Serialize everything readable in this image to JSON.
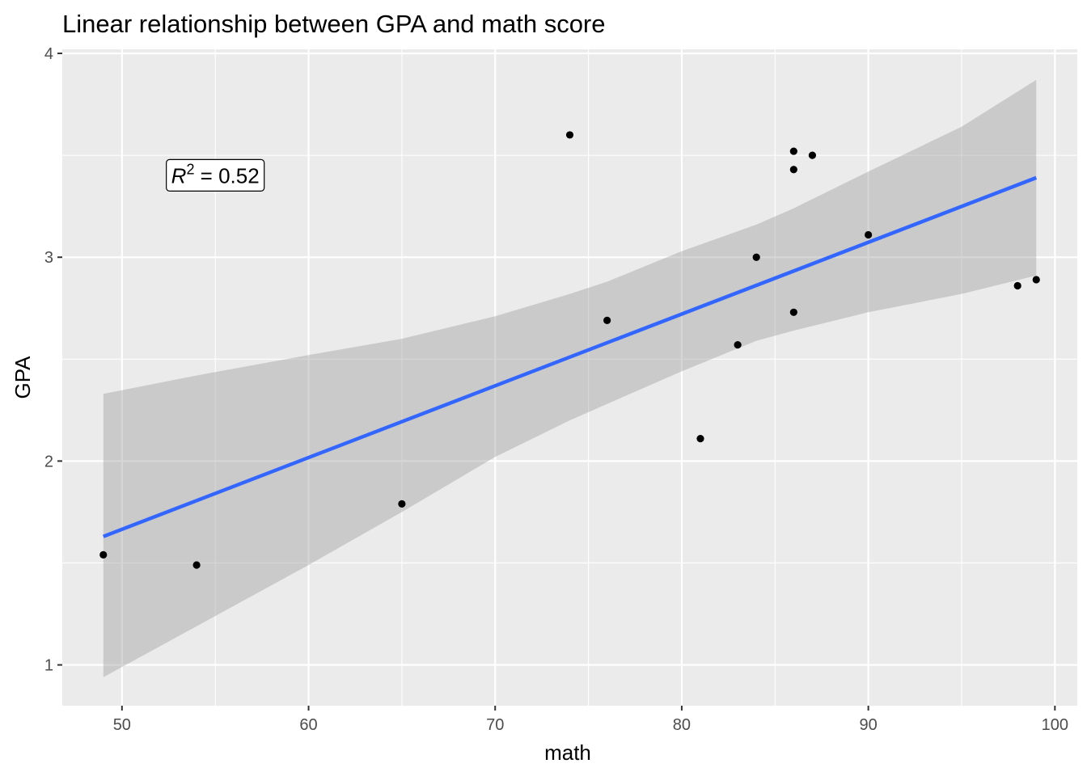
{
  "chart_data": {
    "type": "scatter",
    "title": "Linear relationship between GPA and math score",
    "xlabel": "math",
    "ylabel": "GPA",
    "xlim": [
      46.8,
      101.2
    ],
    "ylim": [
      0.8,
      4.02
    ],
    "x_ticks": [
      50,
      60,
      70,
      80,
      90,
      100
    ],
    "y_ticks": [
      1,
      2,
      3,
      4
    ],
    "x_ticks_minor": [
      55,
      65,
      75,
      85,
      95
    ],
    "y_ticks_minor": [
      1.5,
      2.5,
      3.5
    ],
    "grid": true,
    "background": "#ebebeb",
    "points": [
      {
        "x": 49,
        "y": 1.54
      },
      {
        "x": 54,
        "y": 1.49
      },
      {
        "x": 65,
        "y": 1.79
      },
      {
        "x": 74,
        "y": 3.6
      },
      {
        "x": 76,
        "y": 2.69
      },
      {
        "x": 81,
        "y": 2.11
      },
      {
        "x": 83,
        "y": 2.57
      },
      {
        "x": 84,
        "y": 3.0
      },
      {
        "x": 86,
        "y": 3.52
      },
      {
        "x": 86,
        "y": 3.43
      },
      {
        "x": 86,
        "y": 2.73
      },
      {
        "x": 87,
        "y": 3.5
      },
      {
        "x": 90,
        "y": 3.11
      },
      {
        "x": 98,
        "y": 2.86
      },
      {
        "x": 99,
        "y": 2.89
      }
    ],
    "point_color": "#000000",
    "fit_line": {
      "x0": 49,
      "y0": 1.63,
      "x1": 99,
      "y1": 3.39,
      "color": "#3366ff"
    },
    "confidence_band": {
      "x": [
        49,
        54,
        60,
        65,
        70,
        74,
        76,
        80,
        84,
        86,
        90,
        95,
        99
      ],
      "upper": [
        2.33,
        2.42,
        2.52,
        2.6,
        2.71,
        2.82,
        2.88,
        3.03,
        3.16,
        3.24,
        3.42,
        3.64,
        3.87
      ],
      "lower": [
        0.94,
        1.19,
        1.49,
        1.75,
        2.02,
        2.2,
        2.28,
        2.44,
        2.59,
        2.64,
        2.73,
        2.82,
        2.91
      ],
      "color": "#999999"
    },
    "annotation": {
      "symbol": "R",
      "superscript": "2",
      "value_text": " = 0.52",
      "x": 55,
      "y": 3.4
    }
  }
}
